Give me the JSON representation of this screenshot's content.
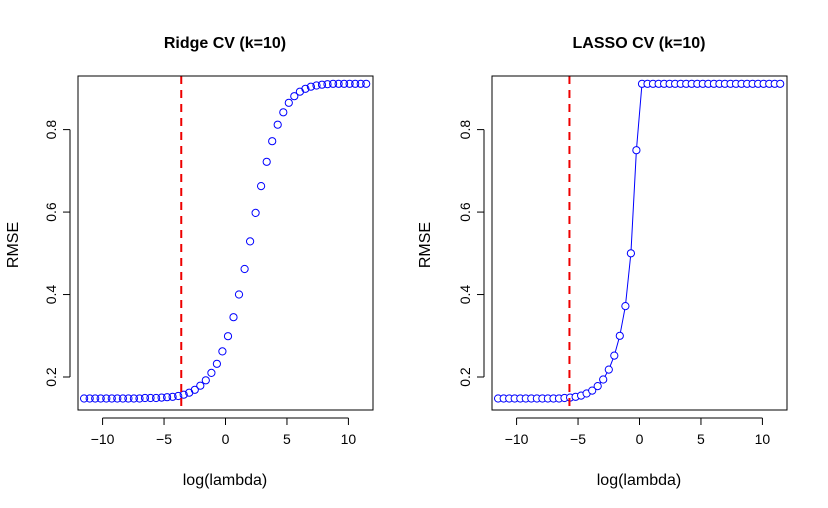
{
  "chart_data": [
    {
      "type": "scatter",
      "title": "Ridge CV (k=10)",
      "xlabel": "log(lambda)",
      "ylabel": "RMSE",
      "xlim": [
        -12,
        12
      ],
      "ylim": [
        0.12,
        0.93
      ],
      "xticks": [
        -10,
        -5,
        0,
        5,
        10
      ],
      "yticks": [
        0.2,
        0.4,
        0.6,
        0.8
      ],
      "connect_points": false,
      "point_color": "#0000ff",
      "vline": {
        "x": -3.6,
        "color": "#ee0000",
        "style": "dashed"
      },
      "series": [
        {
          "x": [
            -11.5,
            -11.05,
            -10.6,
            -10.15,
            -9.7,
            -9.25,
            -8.8,
            -8.35,
            -7.9,
            -7.45,
            -7.0,
            -6.55,
            -6.1,
            -5.65,
            -5.2,
            -4.75,
            -4.3,
            -3.85,
            -3.4,
            -2.95,
            -2.5,
            -2.05,
            -1.6,
            -1.15,
            -0.7,
            -0.25,
            0.2,
            0.65,
            1.1,
            1.55,
            2.0,
            2.45,
            2.9,
            3.35,
            3.8,
            4.25,
            4.7,
            5.15,
            5.6,
            6.05,
            6.5,
            6.95,
            7.4,
            7.85,
            8.3,
            8.75,
            9.2,
            9.65,
            10.1,
            10.55,
            11.0,
            11.45
          ],
          "y": [
            0.148,
            0.148,
            0.148,
            0.148,
            0.148,
            0.148,
            0.148,
            0.148,
            0.148,
            0.148,
            0.148,
            0.149,
            0.149,
            0.149,
            0.15,
            0.151,
            0.152,
            0.154,
            0.157,
            0.162,
            0.169,
            0.179,
            0.192,
            0.21,
            0.232,
            0.262,
            0.299,
            0.345,
            0.4,
            0.462,
            0.529,
            0.598,
            0.663,
            0.722,
            0.772,
            0.812,
            0.842,
            0.865,
            0.881,
            0.892,
            0.899,
            0.904,
            0.907,
            0.909,
            0.91,
            0.911,
            0.911,
            0.911,
            0.911,
            0.911,
            0.911,
            0.911
          ]
        }
      ]
    },
    {
      "type": "line",
      "title": "LASSO CV (k=10)",
      "xlabel": "log(lambda)",
      "ylabel": "RMSE",
      "xlim": [
        -12,
        12
      ],
      "ylim": [
        0.12,
        0.93
      ],
      "xticks": [
        -10,
        -5,
        0,
        5,
        10
      ],
      "yticks": [
        0.2,
        0.4,
        0.6,
        0.8
      ],
      "connect_points": true,
      "point_color": "#0000ff",
      "vline": {
        "x": -5.7,
        "color": "#ee0000",
        "style": "dashed"
      },
      "series": [
        {
          "x": [
            -11.5,
            -11.05,
            -10.6,
            -10.15,
            -9.7,
            -9.25,
            -8.8,
            -8.35,
            -7.9,
            -7.45,
            -7.0,
            -6.55,
            -6.1,
            -5.65,
            -5.2,
            -4.75,
            -4.3,
            -3.85,
            -3.4,
            -2.95,
            -2.5,
            -2.05,
            -1.6,
            -1.15,
            -0.7,
            -0.25,
            0.2,
            0.65,
            1.1,
            1.55,
            2.0,
            2.45,
            2.9,
            3.35,
            3.8,
            4.25,
            4.7,
            5.15,
            5.6,
            6.05,
            6.5,
            6.95,
            7.4,
            7.85,
            8.3,
            8.75,
            9.2,
            9.65,
            10.1,
            10.55,
            11.0,
            11.45
          ],
          "y": [
            0.148,
            0.148,
            0.148,
            0.148,
            0.148,
            0.148,
            0.148,
            0.148,
            0.148,
            0.148,
            0.148,
            0.148,
            0.149,
            0.15,
            0.152,
            0.155,
            0.16,
            0.167,
            0.178,
            0.194,
            0.218,
            0.252,
            0.3,
            0.372,
            0.5,
            0.75,
            0.911,
            0.911,
            0.911,
            0.911,
            0.911,
            0.911,
            0.911,
            0.911,
            0.911,
            0.911,
            0.911,
            0.911,
            0.911,
            0.911,
            0.911,
            0.911,
            0.911,
            0.911,
            0.911,
            0.911,
            0.911,
            0.911,
            0.911,
            0.911,
            0.911,
            0.911
          ]
        }
      ]
    }
  ]
}
